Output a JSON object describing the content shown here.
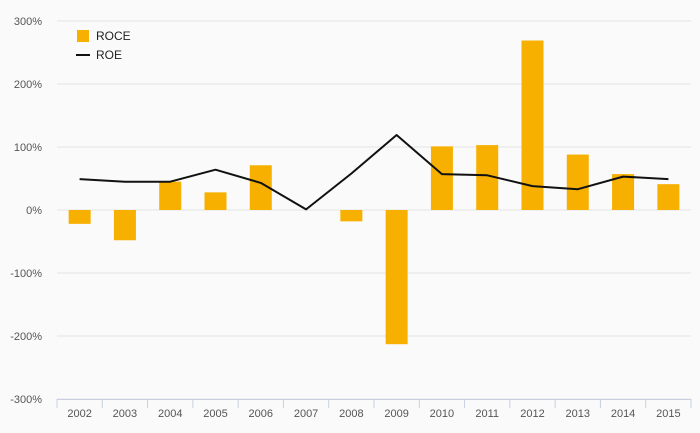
{
  "chart_data": {
    "type": "bar",
    "title": "",
    "xlabel": "",
    "ylabel": "",
    "categories": [
      "2002",
      "2003",
      "2004",
      "2005",
      "2006",
      "2007",
      "2008",
      "2009",
      "2010",
      "2011",
      "2012",
      "2013",
      "2014",
      "2015"
    ],
    "ylim": [
      -300,
      300
    ],
    "yticks": [
      -300,
      -200,
      -100,
      0,
      100,
      200,
      300
    ],
    "ytick_labels": [
      "-300%",
      "-200%",
      "-100%",
      "0%",
      "100%",
      "200%",
      "300%"
    ],
    "grid": true,
    "legend_position": "top-left",
    "series": [
      {
        "name": "ROCE",
        "kind": "bar",
        "color": "#f7b000",
        "values": [
          -22,
          -48,
          45,
          28,
          71,
          0,
          -18,
          -213,
          101,
          103,
          269,
          88,
          57,
          41
        ]
      },
      {
        "name": "ROE",
        "kind": "line",
        "color": "#111111",
        "values": [
          49,
          45,
          45,
          64,
          43,
          1,
          58,
          119,
          57,
          55,
          38,
          33,
          53,
          49
        ]
      }
    ]
  }
}
